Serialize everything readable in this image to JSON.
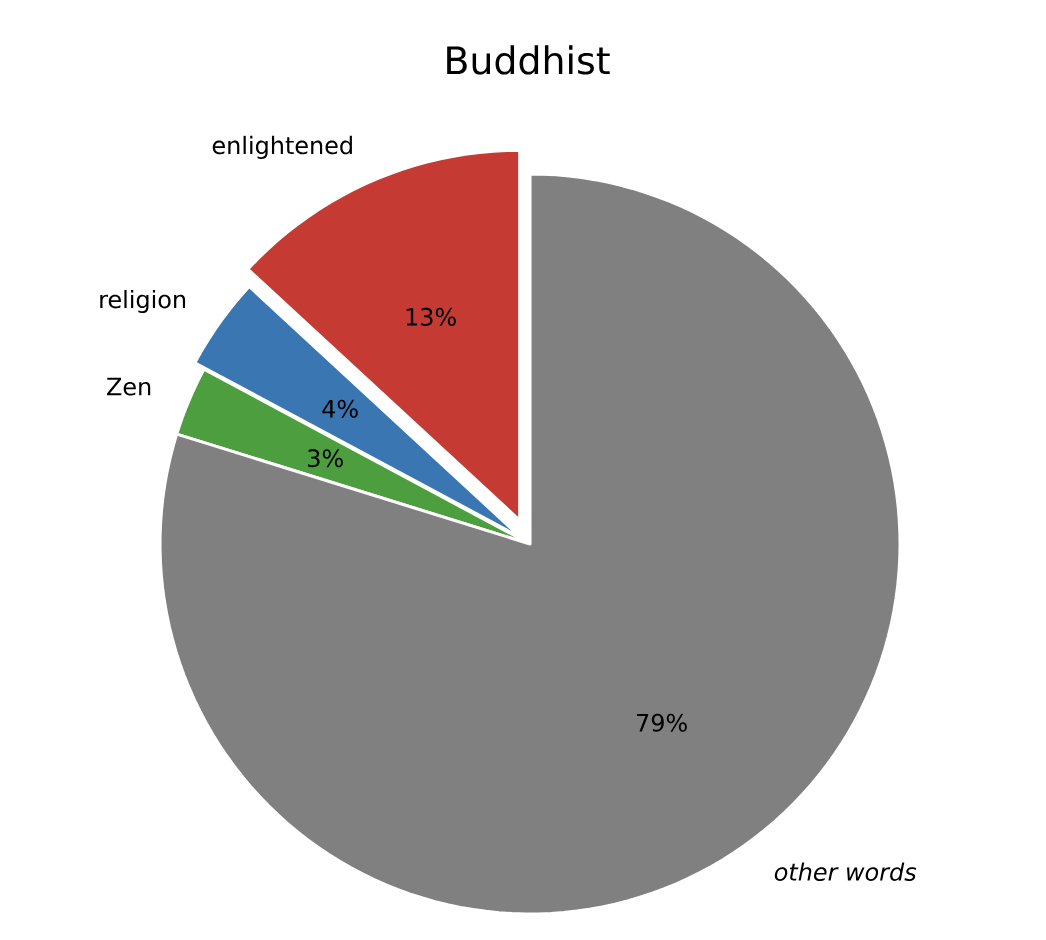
{
  "chart_data": {
    "type": "pie",
    "title": "Buddhist",
    "categories": [
      "enlightened",
      "religion",
      "Zen",
      "*other words*"
    ],
    "values": [
      13,
      4,
      3,
      79
    ],
    "value_labels": [
      "13%",
      "4%",
      "3%",
      "79%"
    ],
    "colors": [
      "#c53a32",
      "#3a76b1",
      "#4c9e3e",
      "#808080"
    ]
  }
}
